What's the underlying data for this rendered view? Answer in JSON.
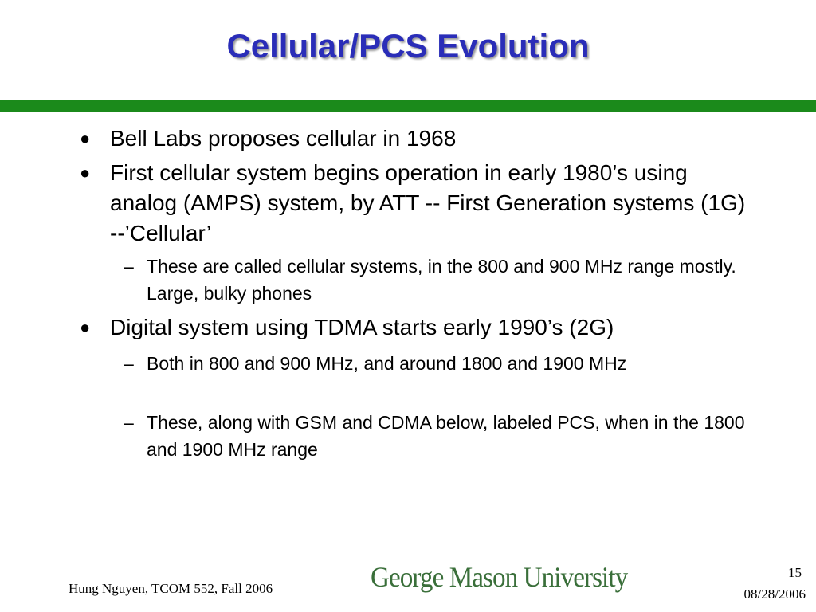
{
  "slide": {
    "title": "Cellular/PCS  Evolution",
    "bullets": [
      {
        "marker": "●",
        "text": " Bell Labs proposes cellular in 1968"
      },
      {
        "marker": "●",
        "text": "First cellular system begins operation in early 1980’s using analog (AMPS) system, by ATT -- First Generation systems (1G) --’Cellular’"
      },
      {
        "marker": "●",
        "text": "Digital system using TDMA starts early 1990’s (2G)"
      }
    ],
    "subbullets": [
      {
        "marker": "–",
        "text": "These are called cellular systems, in the 800 and 900 MHz range mostly. Large, bulky phones"
      },
      {
        "marker": "–",
        "text": "Both in 800 and 900 MHz, and around 1800 and 1900 MHz"
      },
      {
        "marker": "–",
        "text": "These, along with GSM and CDMA below, labeled PCS, when in the 1800 and 1900 MHz range"
      }
    ]
  },
  "footer": {
    "author": "Hung Nguyen, TCOM 552, Fall 2006",
    "logo": "George Mason University",
    "page_number": "15",
    "date": "08/28/2006"
  },
  "colors": {
    "title": "#2a2db8",
    "rule": "#1b8a1b",
    "logo": "#3a6f3a"
  }
}
